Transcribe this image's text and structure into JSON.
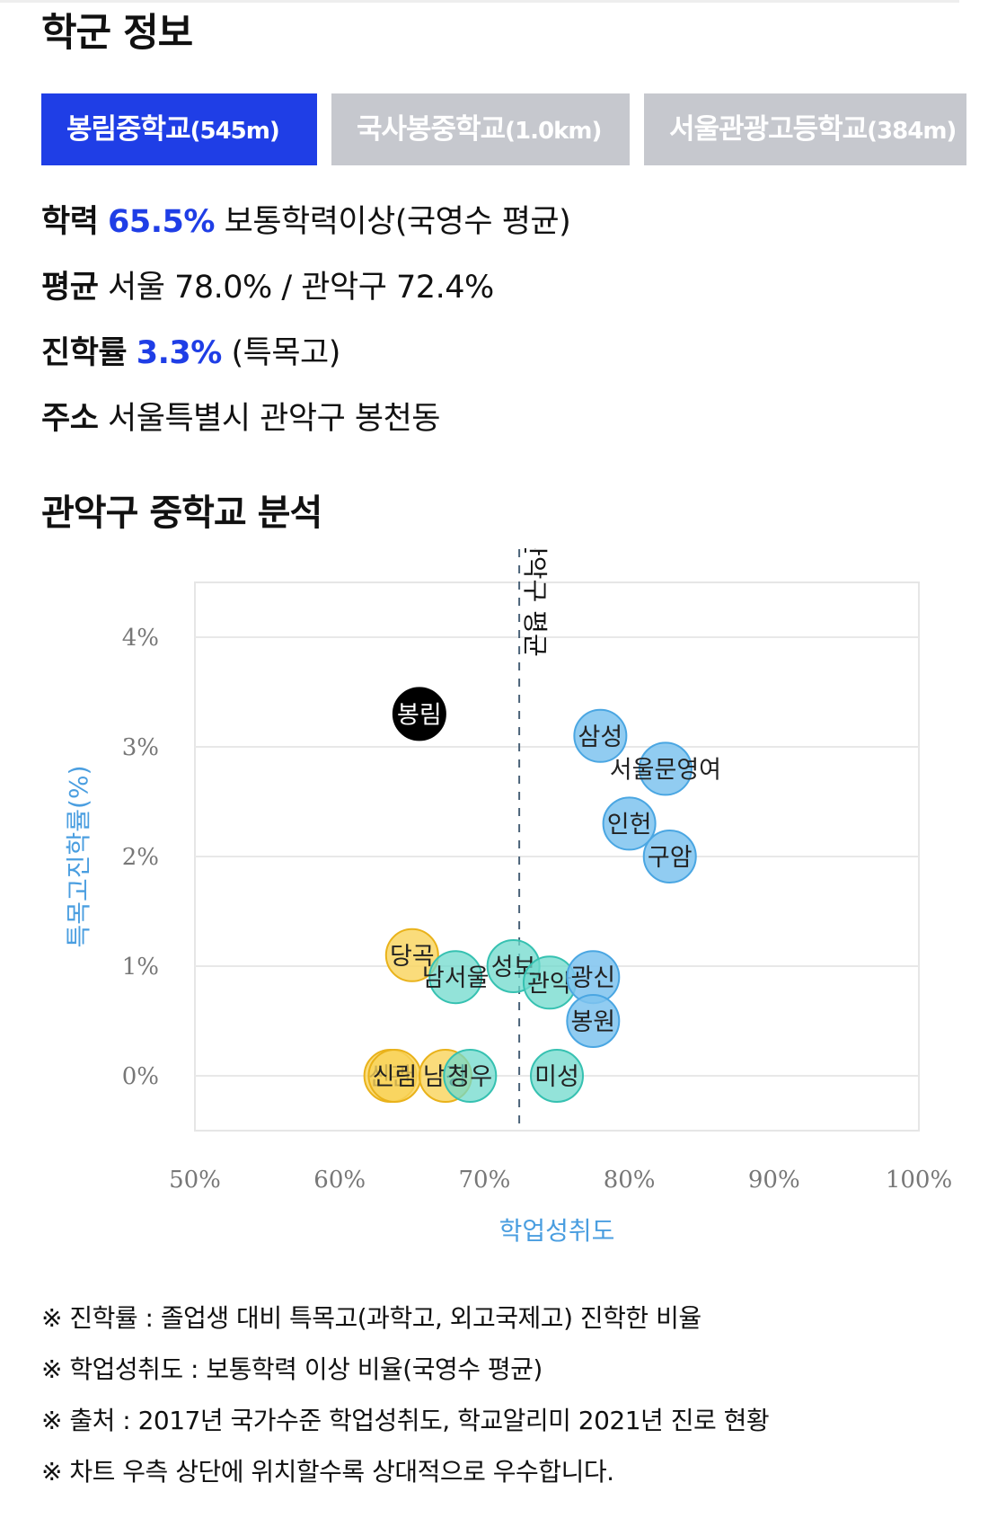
{
  "section_title": "학군 정보",
  "tabs": [
    {
      "name": "봉림중학교",
      "distance": "(545m)",
      "active": true
    },
    {
      "name": "국사봉중학교",
      "distance": "(1.0km)",
      "active": false
    },
    {
      "name": "서울관광고등학교",
      "distance": "(384m)",
      "active": false
    }
  ],
  "info": {
    "academic_label": "학력",
    "academic_value": "65.5%",
    "academic_desc": "보통학력이상(국영수 평균)",
    "avg_label": "평균",
    "avg_value": "서울 78.0% / 관악구 72.4%",
    "advance_label": "진학률",
    "advance_value": "3.3%",
    "advance_desc": "(특목고)",
    "address_label": "주소",
    "address_value": "서울특별시 관악구 봉천동"
  },
  "chart_title": "관악구 중학교 분석",
  "chart_data": {
    "type": "scatter",
    "xlabel": "학업성취도",
    "ylabel": "특목고진학률(%)",
    "xlim": [
      50,
      100
    ],
    "ylim": [
      -0.5,
      4.5
    ],
    "x_ticks": [
      "50%",
      "60%",
      "70%",
      "80%",
      "90%",
      "100%"
    ],
    "y_ticks": [
      "0%",
      "1%",
      "2%",
      "3%",
      "4%"
    ],
    "avg_line": {
      "x": 72.4,
      "label": "관악구 평균"
    },
    "colors": {
      "blue": "#7ec3ee",
      "teal": "#6fd9cc",
      "yellow": "#f9d35a",
      "selected": "#000000"
    },
    "points": [
      {
        "label": "봉림",
        "x": 65.5,
        "y": 3.3,
        "color": "selected"
      },
      {
        "label": "삼성",
        "x": 78.0,
        "y": 3.1,
        "color": "blue"
      },
      {
        "label": "서울문영여",
        "x": 82.5,
        "y": 2.8,
        "color": "blue"
      },
      {
        "label": "인헌",
        "x": 80.0,
        "y": 2.3,
        "color": "blue"
      },
      {
        "label": "구암",
        "x": 82.8,
        "y": 2.0,
        "color": "blue"
      },
      {
        "label": "당곡",
        "x": 65.0,
        "y": 1.1,
        "color": "yellow"
      },
      {
        "label": "남서울",
        "x": 68.0,
        "y": 0.9,
        "color": "teal"
      },
      {
        "label": "성보",
        "x": 72.0,
        "y": 1.0,
        "color": "teal"
      },
      {
        "label": "관악",
        "x": 74.5,
        "y": 0.85,
        "color": "teal"
      },
      {
        "label": "광신",
        "x": 77.5,
        "y": 0.9,
        "color": "blue"
      },
      {
        "label": "봉원",
        "x": 77.5,
        "y": 0.5,
        "color": "blue"
      },
      {
        "label": "신관",
        "x": 63.5,
        "y": 0.0,
        "color": "yellow"
      },
      {
        "label": "신림",
        "x": 63.8,
        "y": 0.0,
        "color": "yellow"
      },
      {
        "label": "남강",
        "x": 67.3,
        "y": 0.0,
        "color": "yellow"
      },
      {
        "label": "청우",
        "x": 69.0,
        "y": 0.0,
        "color": "teal"
      },
      {
        "label": "미성",
        "x": 75.0,
        "y": 0.0,
        "color": "teal"
      }
    ]
  },
  "notes": [
    "※ 진학률 : 졸업생 대비 특목고(과학고, 외고국제고) 진학한 비율",
    "※ 학업성취도 : 보통학력 이상 비율(국영수 평균)",
    "※ 출처 : 2017년 국가수준 학업성취도, 학교알리미 2021년 진로 현황",
    "※ 차트 우측 상단에 위치할수록 상대적으로 우수합니다."
  ]
}
